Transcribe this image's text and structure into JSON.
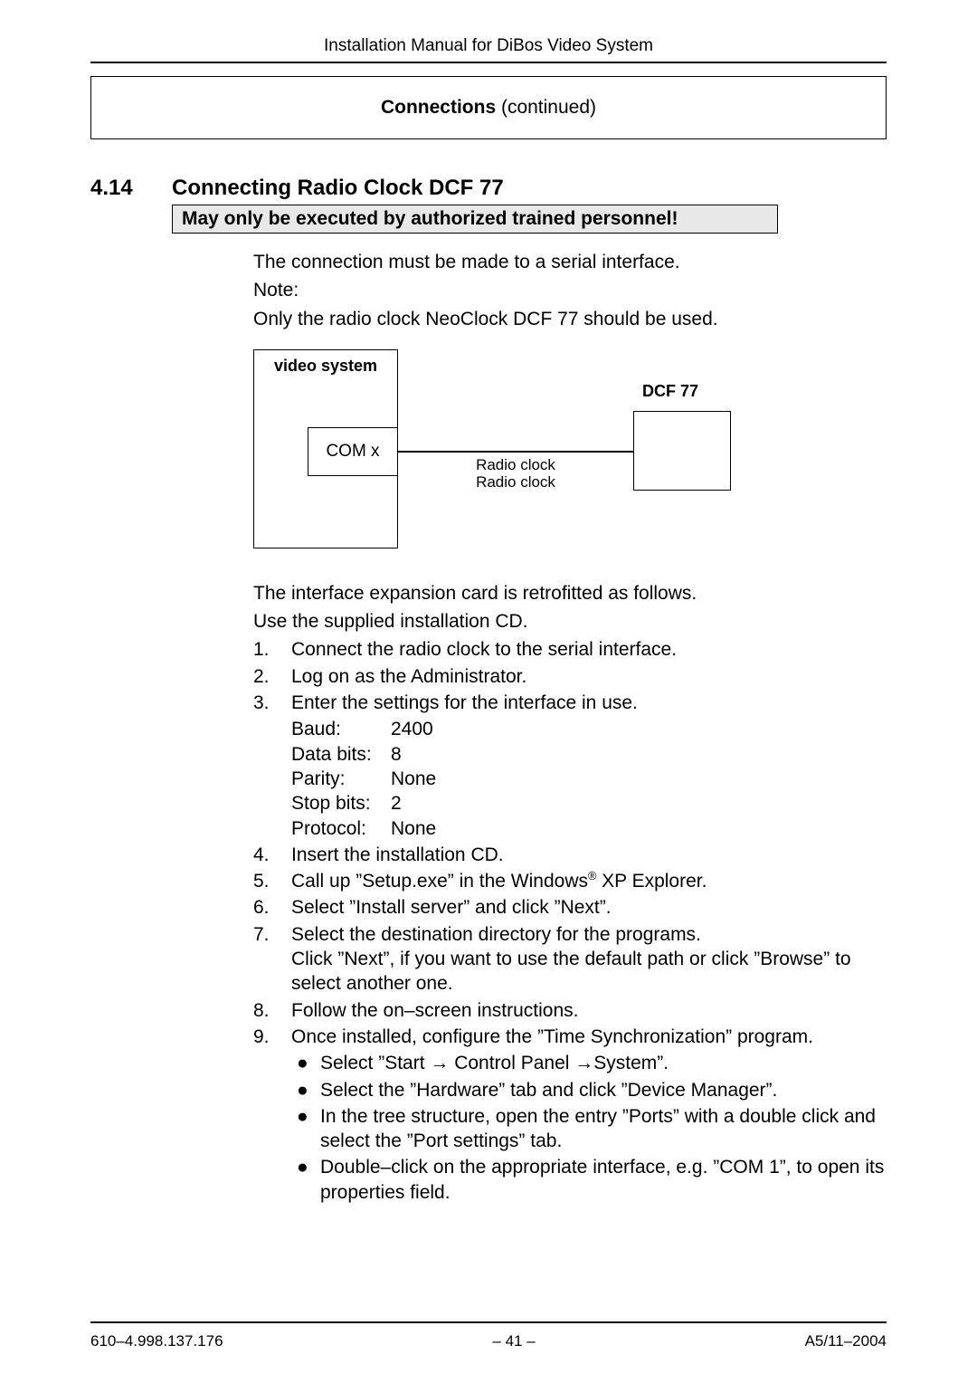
{
  "header": {
    "manual_title": "Installation Manual for DiBos Video System",
    "box_bold": "Connections",
    "box_rest": " (continued)"
  },
  "section": {
    "number": "4.14",
    "title": "Connecting Radio Clock DCF 77",
    "warning": "May only be executed by authorized trained personnel!"
  },
  "intro": {
    "line1": "The connection must be made to a serial interface.",
    "note_label": "Note:",
    "note_body": "Only the radio clock NeoClock DCF 77 should be used."
  },
  "diagram": {
    "video_system": "video system",
    "com": "COM x",
    "dcf": "DCF 77",
    "cable1": "Radio clock",
    "cable2": "Radio clock"
  },
  "post_diagram": {
    "line1": "The interface expansion card is retrofitted as follows.",
    "line2": "Use the supplied installation CD."
  },
  "steps": [
    {
      "n": "1.",
      "text": "Connect the radio clock to the serial interface."
    },
    {
      "n": "2.",
      "text": "Log on as the Administrator."
    },
    {
      "n": "3.",
      "text": "Enter the settings for the interface in use.",
      "settings": [
        {
          "label": "Baud:",
          "value": "2400"
        },
        {
          "label": "Data bits:",
          "value": "8"
        },
        {
          "label": "Parity:",
          "value": "None"
        },
        {
          "label": "Stop bits:",
          "value": "2"
        },
        {
          "label": "Protocol:",
          "value": "None"
        }
      ]
    },
    {
      "n": "4.",
      "text": "Insert the installation CD."
    },
    {
      "n": "5.",
      "pre": "Call up ”Setup.exe” in the Windows",
      "sup": "®",
      "post": " XP Explorer."
    },
    {
      "n": "6.",
      "text": "Select ”Install server” and click ”Next”."
    },
    {
      "n": "7.",
      "text": "Select the destination directory for the programs.",
      "text2": "Click ”Next”, if you want to use the default path or click ”Browse” to select another one."
    },
    {
      "n": "8.",
      "text": "Follow the on–screen instructions."
    },
    {
      "n": "9.",
      "text": "Once installed, configure the ”Time Synchronization” program.",
      "bullets": [
        "Select ”Start → Control Panel →System”.",
        "Select the ”Hardware” tab and click ”Device Manager”.",
        "In the tree structure, open the entry ”Ports” with a double click and select the ”Port settings” tab.",
        "Double–click on the appropriate interface, e.g. ”COM 1”, to open its properties field."
      ]
    }
  ],
  "footer": {
    "doc_num": "610–4.998.137.176",
    "page": "– 41  –",
    "rev": "A5/11–2004"
  },
  "colors": {
    "background": "#ffffff",
    "text": "#000000",
    "warning_bg": "#e8e8e8",
    "border": "#000000"
  }
}
